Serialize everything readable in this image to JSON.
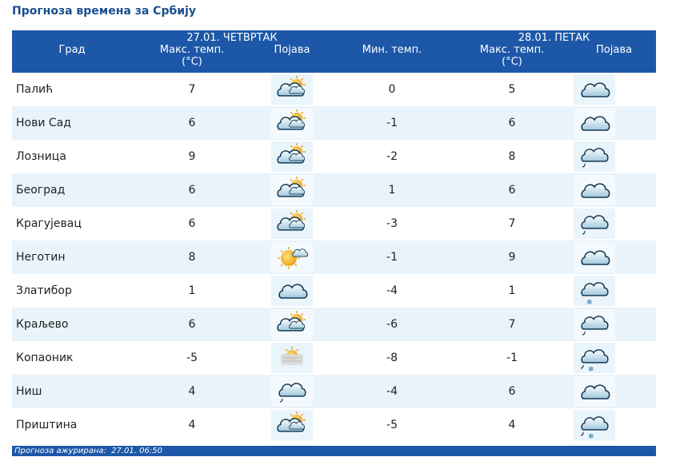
{
  "page_title": "Прогноза времена за Србију",
  "header": {
    "city_col": "Град",
    "day1_date": "27.01. ЧЕТВРТАК",
    "day2_date": "28.01. ПЕТАК",
    "day1_max_label": "Макс. темп.",
    "day1_unit": "(°C)",
    "day1_phen": "Појава",
    "day2_min_label": "Мин. темп.",
    "day2_max_label": "Макс. темп.",
    "day2_unit": "(°C)",
    "day2_phen": "Појава"
  },
  "rows": [
    {
      "city": "Палић",
      "d1_max": "7",
      "d1_icon": "partly-cloudy-sun-icon",
      "d2_min": "0",
      "d2_max": "5",
      "d2_icon": "cloud-icon"
    },
    {
      "city": "Нови Сад",
      "d1_max": "6",
      "d1_icon": "partly-cloudy-sun-icon",
      "d2_min": "-1",
      "d2_max": "6",
      "d2_icon": "cloud-icon"
    },
    {
      "city": "Лозница",
      "d1_max": "9",
      "d1_icon": "partly-cloudy-sun-icon",
      "d2_min": "-2",
      "d2_max": "8",
      "d2_icon": "cloud-rain-icon"
    },
    {
      "city": "Београд",
      "d1_max": "6",
      "d1_icon": "partly-cloudy-sun-icon",
      "d2_min": "1",
      "d2_max": "6",
      "d2_icon": "cloud-icon"
    },
    {
      "city": "Крагујевац",
      "d1_max": "6",
      "d1_icon": "partly-cloudy-sun-icon",
      "d2_min": "-3",
      "d2_max": "7",
      "d2_icon": "cloud-rain-icon"
    },
    {
      "city": "Неготин",
      "d1_max": "8",
      "d1_icon": "sun-cloud-icon",
      "d2_min": "-1",
      "d2_max": "9",
      "d2_icon": "cloud-icon"
    },
    {
      "city": "Златибор",
      "d1_max": "1",
      "d1_icon": "cloud-icon",
      "d2_min": "-4",
      "d2_max": "1",
      "d2_icon": "cloud-snow-icon"
    },
    {
      "city": "Краљево",
      "d1_max": "6",
      "d1_icon": "partly-cloudy-sun-icon",
      "d2_min": "-6",
      "d2_max": "7",
      "d2_icon": "cloud-rain-icon"
    },
    {
      "city": "Копаоник",
      "d1_max": "-5",
      "d1_icon": "fog-sun-icon",
      "d2_min": "-8",
      "d2_max": "-1",
      "d2_icon": "cloud-rain-snow-icon"
    },
    {
      "city": "Ниш",
      "d1_max": "4",
      "d1_icon": "cloud-rain-icon",
      "d2_min": "-4",
      "d2_max": "6",
      "d2_icon": "cloud-icon"
    },
    {
      "city": "Приштина",
      "d1_max": "4",
      "d1_icon": "partly-cloudy-sun-icon",
      "d2_min": "-5",
      "d2_max": "4",
      "d2_icon": "cloud-rain-snow-icon"
    }
  ],
  "footer": {
    "label": "Прогноза ажурирана:",
    "value": "27.01. 06:50"
  },
  "colors": {
    "header_bg": "#1d58a8",
    "title": "#1a4e8e",
    "row_alt": "#e8f3fb"
  }
}
